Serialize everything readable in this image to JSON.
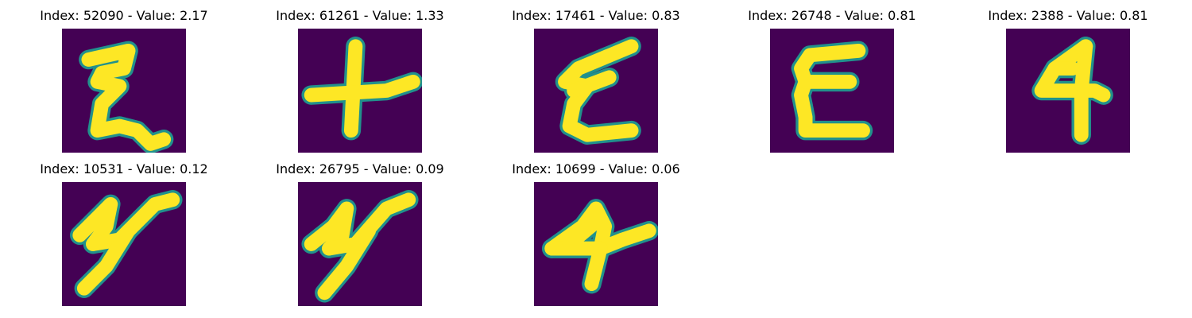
{
  "figure": {
    "panels": [
      {
        "title": "Index: 52090 - Value: 2.17",
        "glyph": "sigma-stroke-icon"
      },
      {
        "title": "Index: 61261 - Value: 1.33",
        "glyph": "plus-stroke-icon"
      },
      {
        "title": "Index: 17461 - Value: 0.83",
        "glyph": "slanted-e-stroke-icon"
      },
      {
        "title": "Index: 26748 - Value: 0.81",
        "glyph": "e-stroke-icon"
      },
      {
        "title": "Index: 2388 - Value: 0.81",
        "glyph": "four-stroke-icon"
      },
      {
        "title": "Index: 10531 - Value: 0.12",
        "glyph": "y-stroke-icon"
      },
      {
        "title": "Index: 26795 - Value: 0.09",
        "glyph": "y-stroke-icon"
      },
      {
        "title": "Index: 10699 - Value: 0.06",
        "glyph": "four-blob-stroke-icon"
      }
    ],
    "colors": {
      "background": "#440154",
      "stroke": "#fde725",
      "edge": "#21918c"
    }
  }
}
